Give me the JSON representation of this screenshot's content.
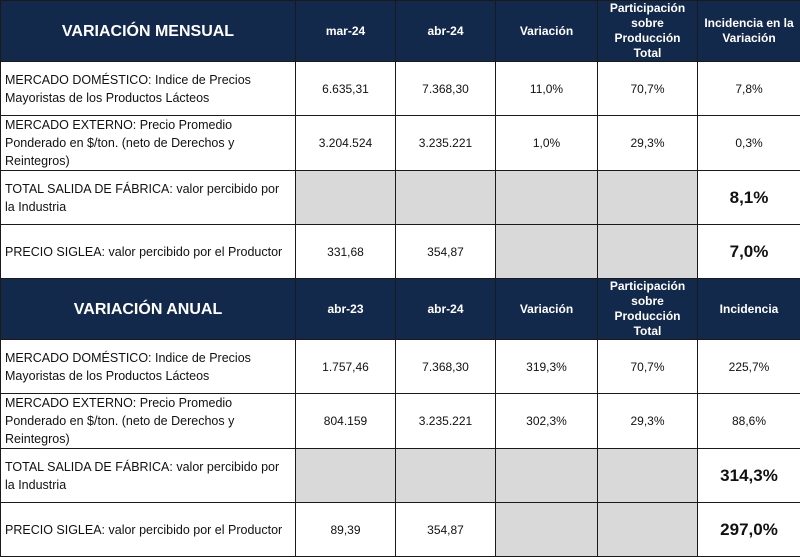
{
  "sections": [
    {
      "title": "VARIACIÓN MENSUAL",
      "headers": [
        "mar-24",
        "abr-24",
        "Variación",
        "Participación sobre Producción Total",
        "Incidencia en la Variación"
      ],
      "rows": [
        {
          "label": "MERCADO DOMÉSTICO: Indice de Precios Mayoristas de los Productos Lácteos",
          "cells": [
            "6.635,31",
            "7.368,30",
            "11,0%",
            "70,7%",
            "7,8%"
          ]
        },
        {
          "label": "MERCADO EXTERNO: Precio Promedio Ponderado en $/ton. (neto de Derechos y Reintegros)",
          "cells": [
            "3.204.524",
            "3.235.221",
            "1,0%",
            "29,3%",
            "0,3%"
          ]
        },
        {
          "label": "TOTAL SALIDA DE FÁBRICA: valor percibido por la Industria",
          "cells": [
            "",
            "",
            "",
            "",
            "8,1%"
          ]
        },
        {
          "label": "PRECIO SIGLEA: valor percibido por el Productor",
          "cells": [
            "331,68",
            "354,87",
            "",
            "",
            "7,0%"
          ]
        }
      ]
    },
    {
      "title": "VARIACIÓN ANUAL",
      "headers": [
        "abr-23",
        "abr-24",
        "Variación",
        "Participación sobre Producción Total",
        "Incidencia"
      ],
      "rows": [
        {
          "label": "MERCADO DOMÉSTICO: Indice de Precios Mayoristas de los Productos Lácteos",
          "cells": [
            "1.757,46",
            "7.368,30",
            "319,3%",
            "70,7%",
            "225,7%"
          ]
        },
        {
          "label": "MERCADO EXTERNO: Precio Promedio Ponderado en $/ton. (neto de Derechos y Reintegros)",
          "cells": [
            "804.159",
            "3.235.221",
            "302,3%",
            "29,3%",
            "88,6%"
          ]
        },
        {
          "label": "TOTAL SALIDA DE FÁBRICA: valor percibido por la Industria",
          "cells": [
            "",
            "",
            "",
            "",
            "314,3%"
          ]
        },
        {
          "label": "PRECIO SIGLEA: valor percibido por el Productor",
          "cells": [
            "89,39",
            "354,87",
            "",
            "",
            "297,0%"
          ]
        }
      ]
    }
  ],
  "colors": {
    "header_bg": "#13294b",
    "empty_cell": "#d9d9d9"
  }
}
